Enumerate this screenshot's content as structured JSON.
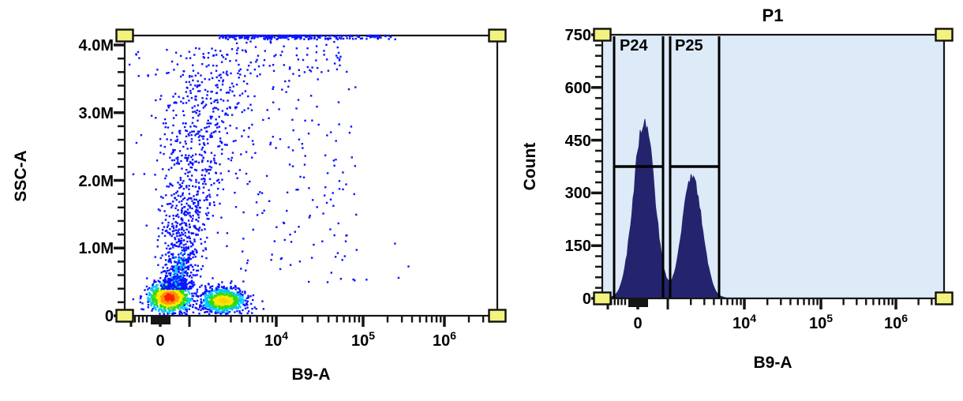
{
  "ui": {
    "page_bg": "#ffffff",
    "frame_color": "#151515",
    "handle_fill": "#f2f27e",
    "handle_name": "resize-handle"
  },
  "chart_data": [
    {
      "type": "scatter",
      "panel": "left",
      "title": "",
      "xlabel": "B9-A",
      "ylabel": "SSC-A",
      "x_scale": "logicle",
      "y_scale": "linear",
      "ylim": [
        0,
        4200000
      ],
      "xlim": [
        -2000,
        4000000
      ],
      "grid": false,
      "x_tick_labels": [
        "0",
        "10^4",
        "10^5",
        "10^6"
      ],
      "y_tick_labels": [
        "0",
        "1.0M",
        "2.0M",
        "3.0M",
        "4.0M"
      ],
      "plot_bg": "#ffffff",
      "density_palette_low_to_high": [
        "#0a14ff",
        "#00c8ff",
        "#2edc12",
        "#ffe800",
        "#ff9400",
        "#ff1f00"
      ],
      "populations": [
        {
          "name": "negative-cluster",
          "B9A_approx": 0,
          "SSCA_approx": 250000,
          "events": 1000,
          "core_color": "#ff1f00"
        },
        {
          "name": "positive-cluster",
          "B9A_approx": 2500,
          "SSCA_approx": 220000,
          "events": 780,
          "core_color": "#ffd000"
        },
        {
          "name": "vertical-debris-smear",
          "B9A_approx": 600,
          "SSCA_range": [
            400000,
            4200000
          ],
          "events": 1250,
          "core_color": "#0a14ff"
        },
        {
          "name": "offscale-top-band",
          "SSCA_approx": 4200000,
          "events": 280,
          "core_color": "#0a14ff"
        },
        {
          "name": "sparse-background",
          "events": 230,
          "core_color": "#0a14ff"
        }
      ]
    },
    {
      "type": "histogram",
      "panel": "right",
      "title": "P1",
      "xlabel": "B9-A",
      "ylabel": "Count",
      "x_scale": "logicle",
      "ylim": [
        0,
        750
      ],
      "grid": false,
      "x_tick_labels": [
        "0",
        "10^4",
        "10^5",
        "10^6"
      ],
      "y_tick_labels": [
        "0",
        "150",
        "300",
        "450",
        "600",
        "750"
      ],
      "plot_bg": "#ddeaf8",
      "fill_color": "#24246e",
      "peaks": [
        {
          "name": "negative-peak",
          "B9A_approx": 0,
          "count_peak": 505
        },
        {
          "name": "positive-peak",
          "B9A_approx": 2500,
          "count_peak": 345
        }
      ],
      "gates": [
        {
          "label": "P24",
          "B9A_range_approx": [
            -900,
            1000
          ],
          "crossbar_count": 375
        },
        {
          "label": "P25",
          "B9A_range_approx": [
            1200,
            5500
          ],
          "crossbar_count": 375
        }
      ]
    }
  ]
}
